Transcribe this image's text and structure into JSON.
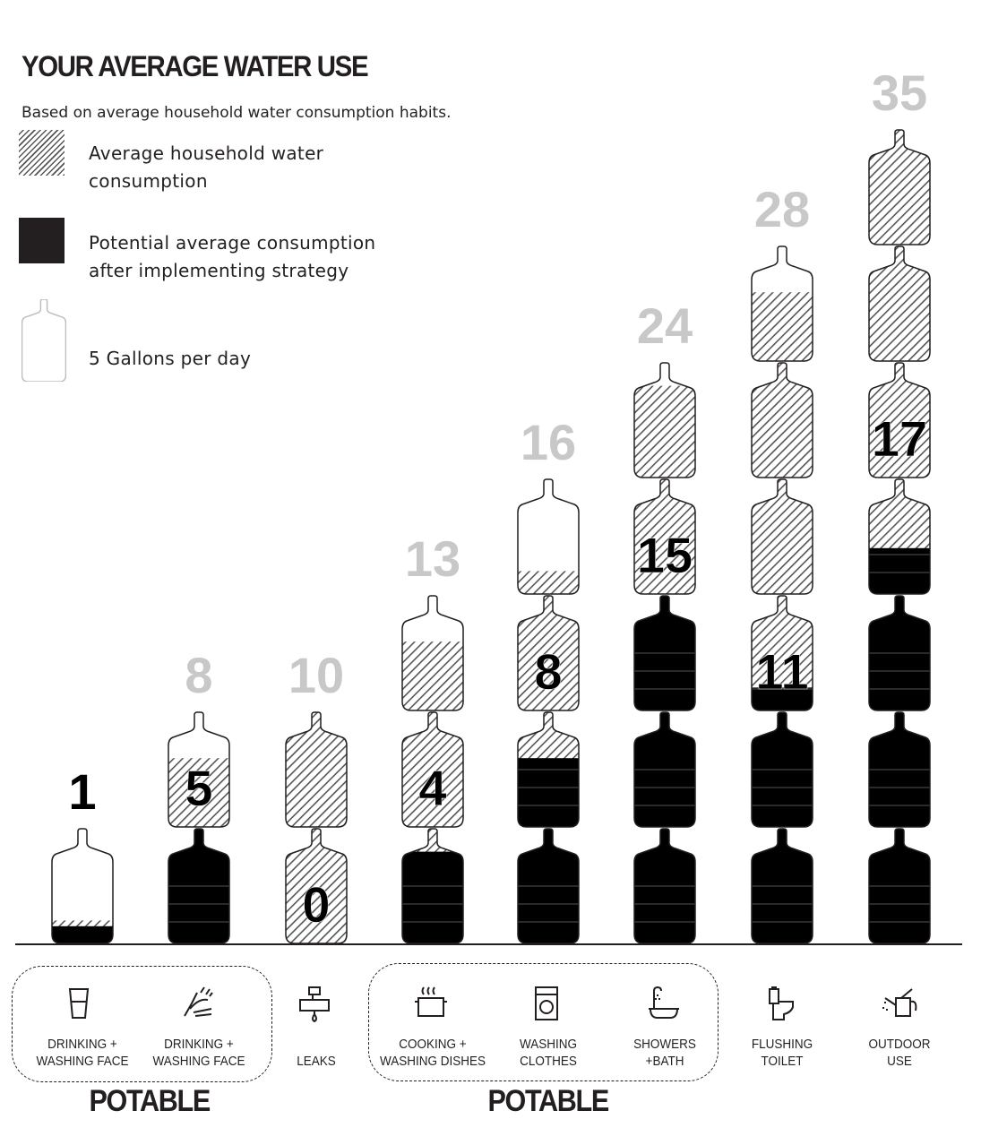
{
  "title": "YOUR AVERAGE WATER USE",
  "subtitle": "Based on average household water consumption habits.",
  "legend": {
    "hatched": "Average household water consumption",
    "hatched_l1": "Average household water",
    "hatched_l2": "consumption",
    "black_l1": "Potential average consumption",
    "black_l2": "after implementing strategy",
    "bottle": "5 Gallons per day"
  },
  "colors": {
    "average_label": "#c8c8c8",
    "potential": "#231f20",
    "hatch": "#555555"
  },
  "chart_data": {
    "type": "pictogram-bar",
    "unit": "gallons per day (1 bottle = 5 gallons)",
    "categories": [
      "DRINKING + WASHING FACE",
      "DRINKING + WASHING FACE",
      "LEAKS",
      "COOKING + WASHING DISHES",
      "WASHING CLOTHES",
      "SHOWERS +BATH",
      "FLUSHING TOILET",
      "OUTDOOR USE"
    ],
    "series": [
      {
        "name": "Average household water consumption",
        "values": [
          1,
          8,
          10,
          13,
          16,
          24,
          28,
          35
        ]
      },
      {
        "name": "Potential average consumption after implementing strategy",
        "values": [
          1,
          5,
          0,
          4,
          8,
          15,
          11,
          17
        ]
      }
    ]
  },
  "categories": [
    {
      "l1": "DRINKING +",
      "l2": "WASHING FACE",
      "icon": "glass-icon"
    },
    {
      "l1": "DRINKING +",
      "l2": "WASHING FACE",
      "icon": "washing-hands-icon"
    },
    {
      "l1": "",
      "l2": "LEAKS",
      "icon": "leaking-pipe-icon"
    },
    {
      "l1": "COOKING +",
      "l2": "WASHING DISHES",
      "icon": "cooking-pot-icon"
    },
    {
      "l1": "WASHING",
      "l2": "CLOTHES",
      "icon": "washing-machine-icon"
    },
    {
      "l1": "SHOWERS",
      "l2": "+BATH",
      "icon": "shower-bath-icon"
    },
    {
      "l1": "FLUSHING",
      "l2": "TOILET",
      "icon": "toilet-icon"
    },
    {
      "l1": "OUTDOOR",
      "l2": "USE",
      "icon": "watering-can-icon"
    }
  ],
  "groups": [
    "POTABLE",
    "POTABLE"
  ]
}
